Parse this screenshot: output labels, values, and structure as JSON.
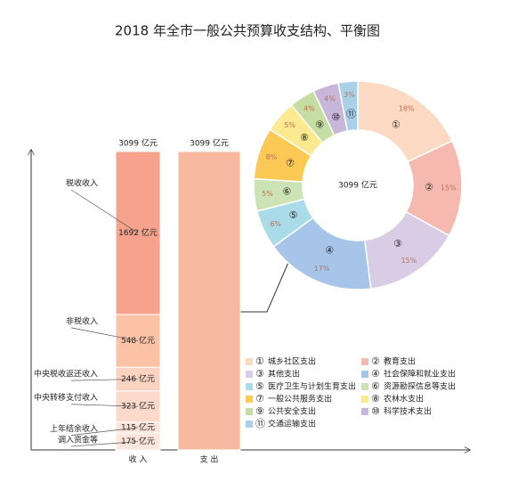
{
  "chart_data": [
    {
      "type": "stacked-bar",
      "title": "2018 年全市一般公共预算收支结构、平衡图",
      "bars": [
        {
          "label": "收 入",
          "total": 3099,
          "total_label": "3099 亿元",
          "segments": [
            {
              "name": "税收收入",
              "value": 1692,
              "value_label": "1692 亿元",
              "color": "#f6a28d"
            },
            {
              "name": "非税收入",
              "value": 548,
              "value_label": "548 亿元",
              "color": "#fbc2a6"
            },
            {
              "name": "中央税收返还收入",
              "value": 246,
              "value_label": "246 亿元",
              "color": "#fcd3c0"
            },
            {
              "name": "中央转移支付收入",
              "value": 323,
              "value_label": "323 亿元",
              "color": "#fcd9cb"
            },
            {
              "name": "上年结余收入",
              "value": 115,
              "value_label": "115 亿元",
              "color": "#fde3d8"
            },
            {
              "name": "调入资金等",
              "value": 175,
              "value_label": "175 亿元",
              "color": "#fde6dc"
            }
          ]
        },
        {
          "label": "支 出",
          "total": 3099,
          "total_label": "3099 亿元",
          "segments": [
            {
              "value": 3099,
              "color": "#f9b9a1"
            }
          ]
        }
      ]
    },
    {
      "type": "donut",
      "center_label": "3099 亿元",
      "ids": [
        "①",
        "②",
        "③",
        "④",
        "⑤",
        "⑥",
        "⑦",
        "⑧",
        "⑨",
        "⑩",
        "⑪"
      ],
      "names": [
        "城乡社区支出",
        "教育支出",
        "其他支出",
        "社会保障和就业支出",
        "医疗卫生与计划生育支出",
        "资源勘探信息等支出",
        "一般公共服务支出",
        "农林水支出",
        "公共安全支出",
        "科学技术支出",
        "交通运输支出"
      ],
      "values": [
        18,
        15,
        15,
        17,
        6,
        5,
        8,
        5,
        4,
        4,
        3
      ],
      "value_labels": [
        "18%",
        "15%",
        "15%",
        "17%",
        "6%",
        "5%",
        "8%",
        "5%",
        "4%",
        "4%",
        "3%"
      ],
      "colors": [
        "#fbd9c2",
        "#f5b9b0",
        "#d9cde6",
        "#a6c5e8",
        "#a9dbe9",
        "#cbe3b5",
        "#fcc955",
        "#fde98f",
        "#c6dda3",
        "#c8b7da",
        "#a9d2ea"
      ]
    }
  ]
}
